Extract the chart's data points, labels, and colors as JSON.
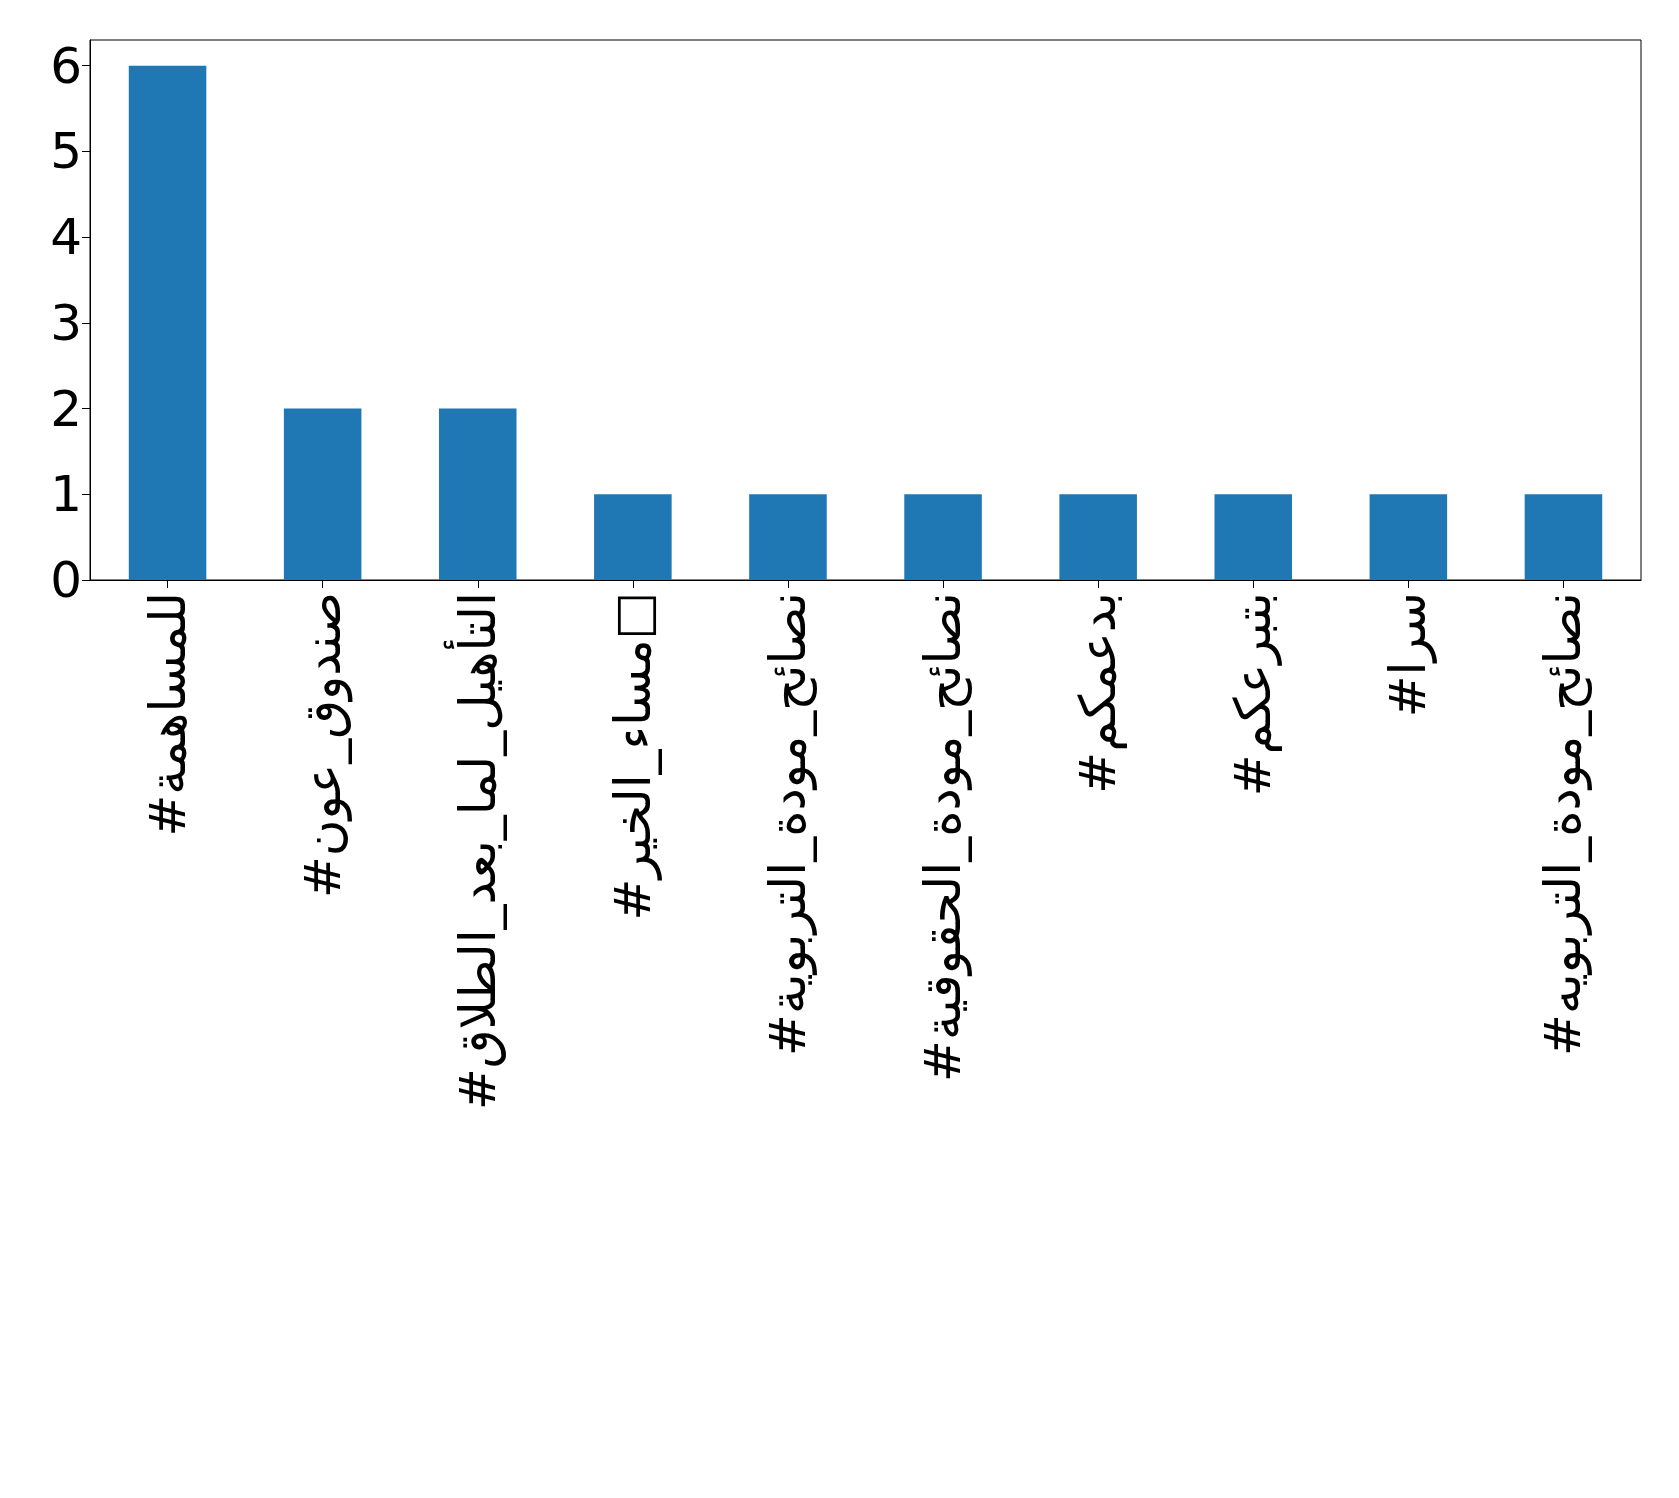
{
  "chart_data": {
    "type": "bar",
    "categories": [
      "#للمساهمة",
      "#صندوق_عون",
      "#التأهيل_لما_بعد_الطلاق",
      "#مساء_الخير□",
      "#نصائح_مودة_التربوية",
      "#نصائح_مودة_الحقوقية",
      "#بدعمكم",
      "#بتبرعكم",
      "#سرا",
      "#نصائح_مودة_التربويه"
    ],
    "values": [
      6,
      2,
      2,
      1,
      1,
      1,
      1,
      1,
      1,
      1
    ],
    "color": "#1f77b4",
    "ylim": [
      0,
      6.3
    ],
    "yticks": [
      0,
      1,
      2,
      3,
      4,
      5,
      6
    ],
    "grid": false
  }
}
